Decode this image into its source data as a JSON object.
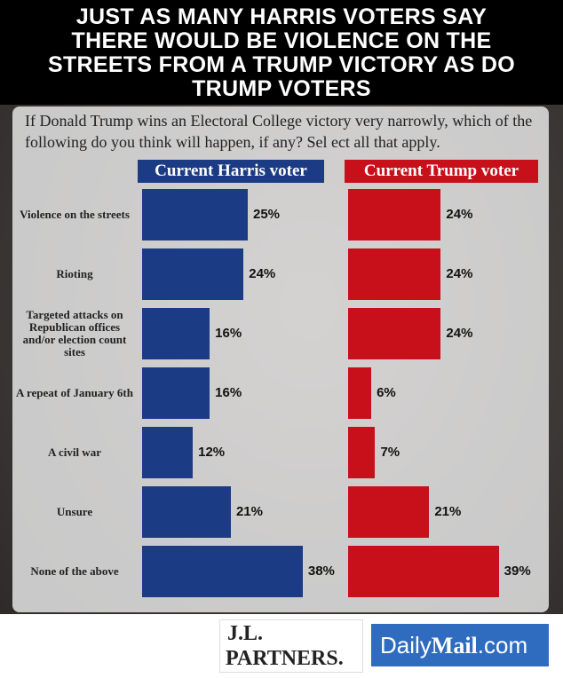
{
  "chart_data": {
    "type": "bar",
    "orientation": "horizontal",
    "title_lines": [
      "JUST AS MANY HARRIS VOTERS SAY",
      "THERE WOULD BE VIOLENCE ON THE",
      "STREETS FROM A TRUMP VICTORY AS DO",
      "TRUMP VOTERS"
    ],
    "subtitle": "If Donald Trump wins an Electoral College victory very narrowly, which of the following do you think will happen, if any? Sel ect all that apply.",
    "categories": [
      "Violence on the streets",
      "Rioting",
      "Targeted attacks on Republican offices and/or election count sites",
      "A repeat of January 6th",
      "A civil war",
      "Unsure",
      "None of the above"
    ],
    "series": [
      {
        "name": "Current Harris voter",
        "color": "#1b3c85",
        "values": [
          25,
          24,
          16,
          16,
          12,
          21,
          38
        ],
        "value_labels": [
          "25%",
          "24%",
          "16%",
          "16%",
          "12%",
          "21%",
          "38%"
        ]
      },
      {
        "name": "Current Trump voter",
        "color": "#c8101a",
        "values": [
          24,
          24,
          24,
          6,
          7,
          21,
          39
        ],
        "value_labels": [
          "24%",
          "24%",
          "24%",
          "6%",
          "7%",
          "21%",
          "39%"
        ]
      }
    ]
  },
  "logos": {
    "jl": "J.L.",
    "partners": "PARTNERS.",
    "daily": "Daily",
    "mail": "Mail",
    "com": ".com"
  }
}
